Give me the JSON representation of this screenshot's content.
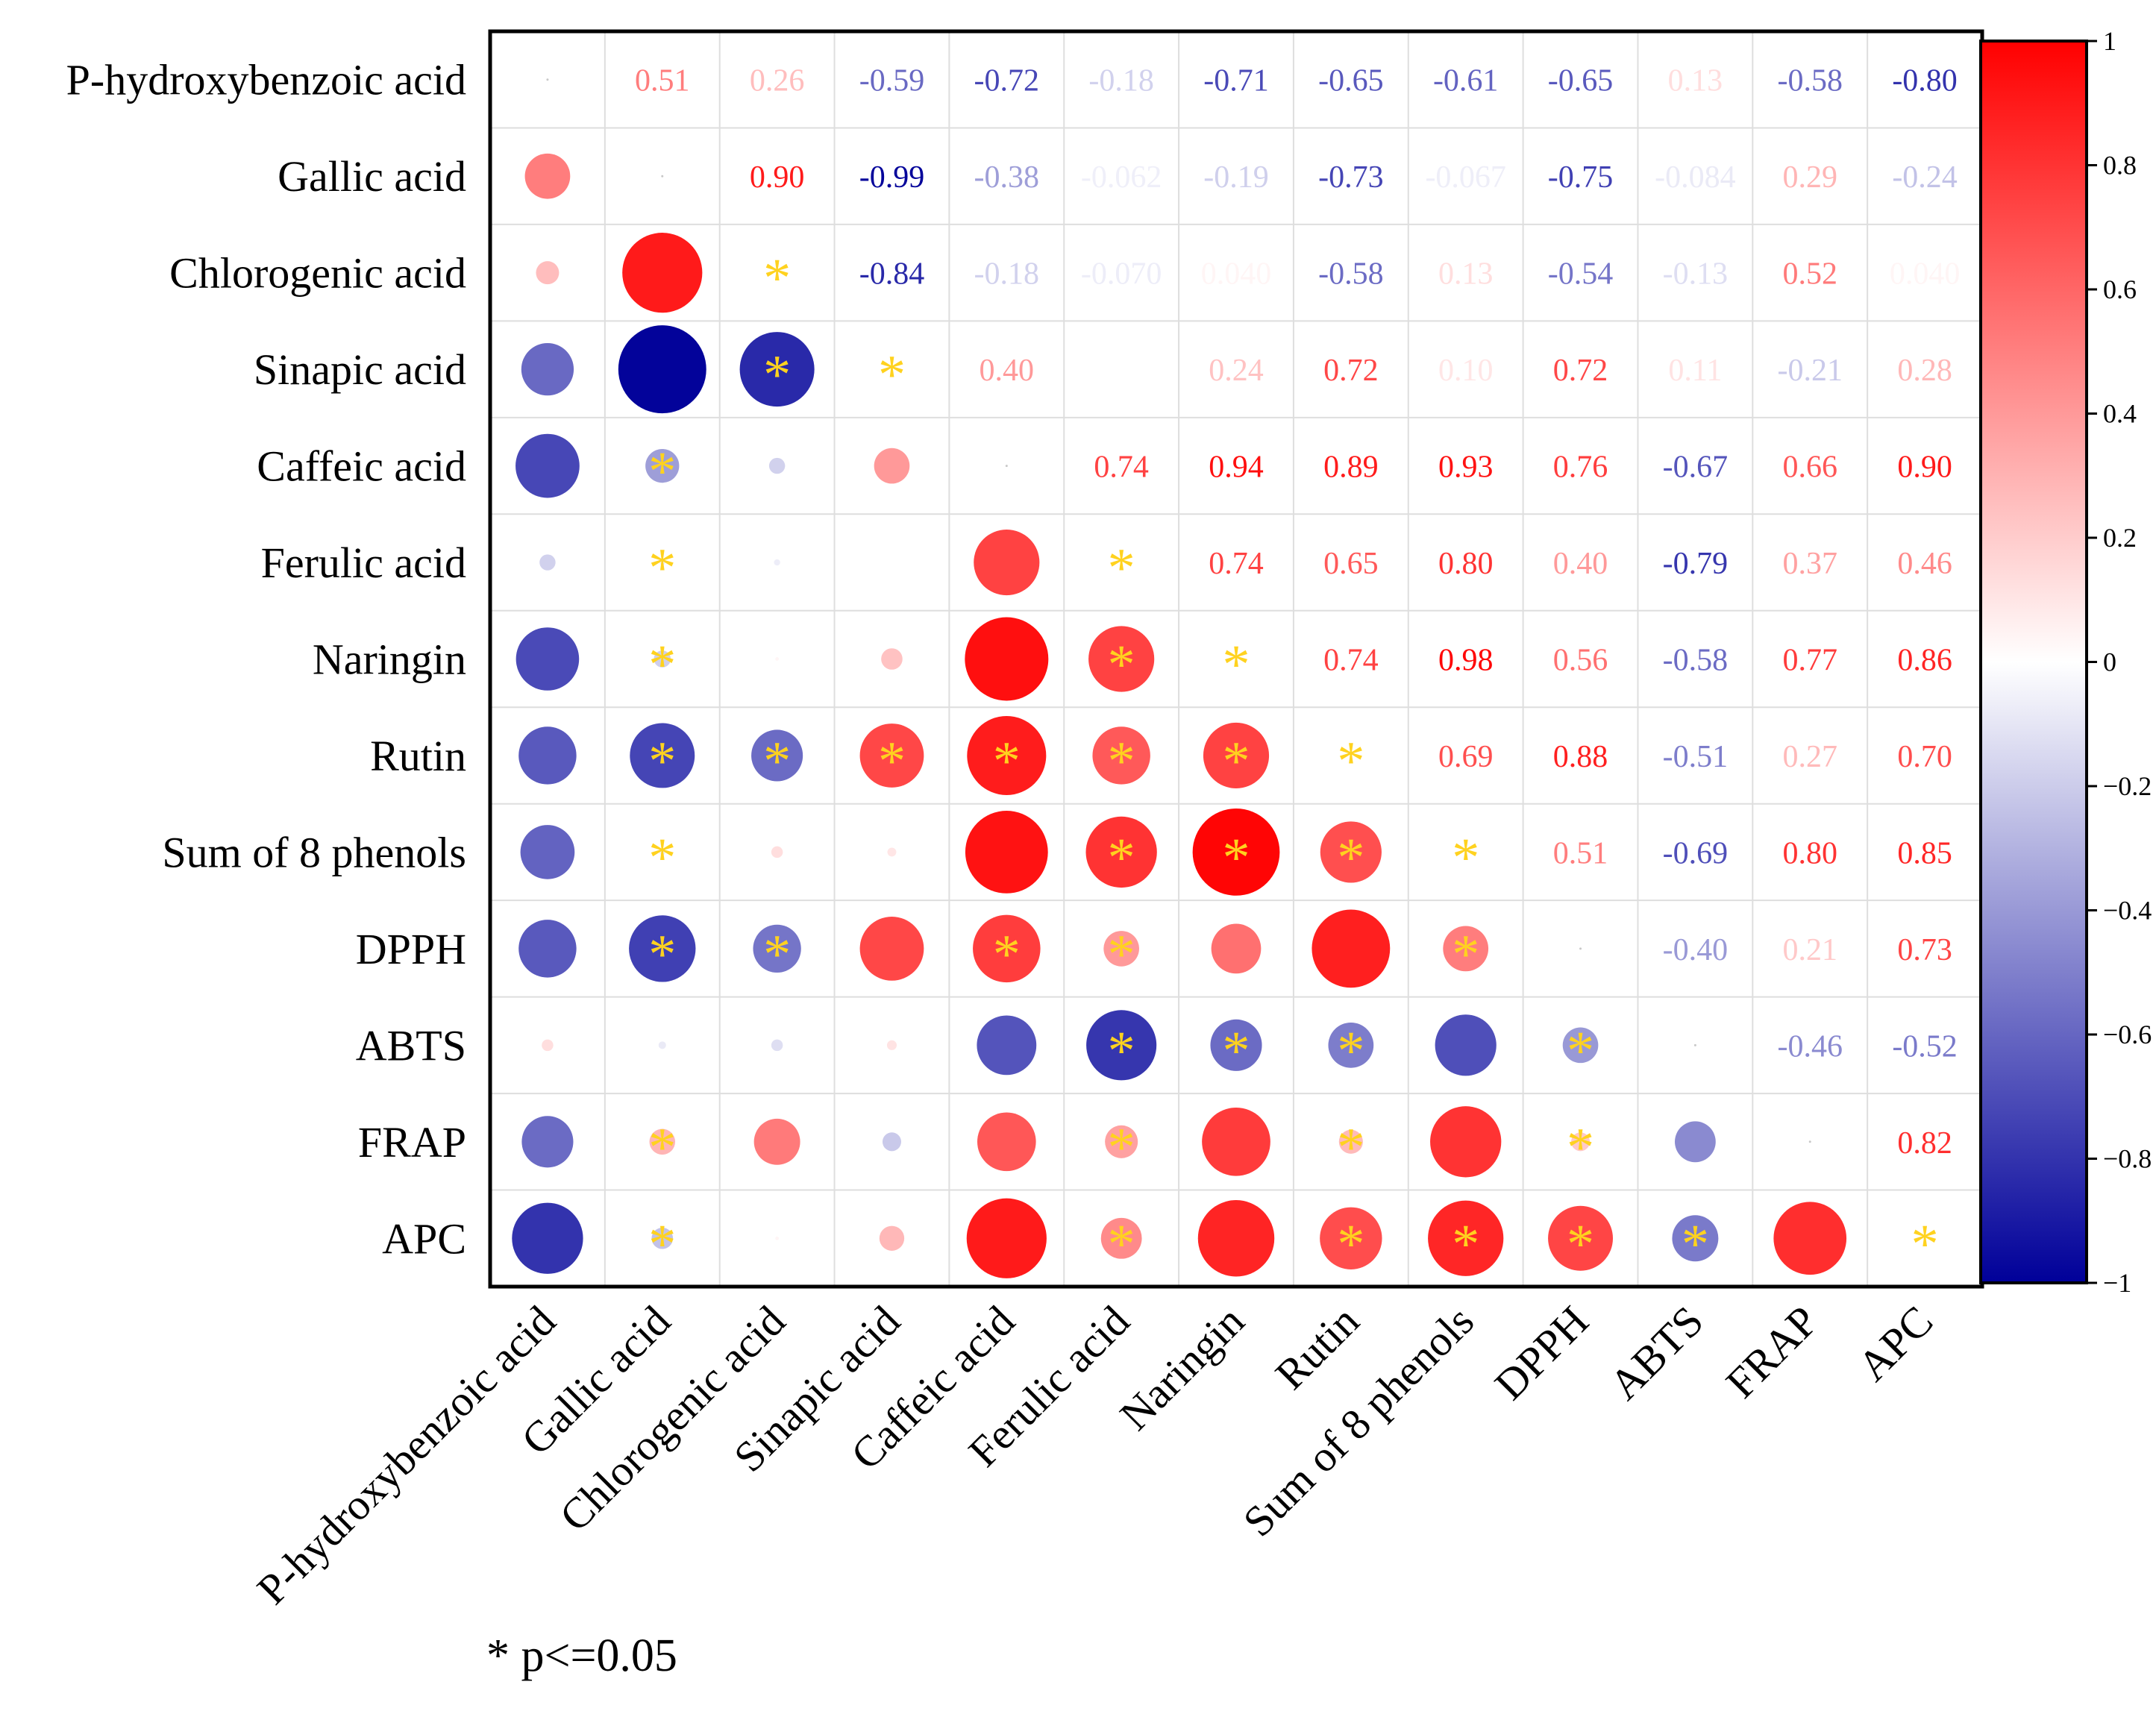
{
  "chart_data": {
    "type": "heatmap",
    "variables": [
      "P-hydroxybenzoic acid",
      "Gallic acid",
      "Chlorogenic acid",
      "Sinapic acid",
      "Caffeic acid",
      "Ferulic acid",
      "Naringin",
      "Rutin",
      "Sum of 8 phenols",
      "DPPH",
      "ABTS",
      "FRAP",
      "APC"
    ],
    "matrix": [
      [
        1.0,
        0.51,
        0.26,
        -0.59,
        -0.72,
        -0.18,
        -0.71,
        -0.65,
        -0.61,
        -0.65,
        0.13,
        -0.58,
        -0.8
      ],
      [
        0.51,
        1.0,
        0.9,
        -0.99,
        -0.38,
        -0.062,
        -0.19,
        -0.73,
        -0.067,
        -0.75,
        -0.084,
        0.29,
        -0.24
      ],
      [
        0.26,
        0.9,
        1.0,
        -0.84,
        -0.18,
        -0.07,
        0.04,
        -0.58,
        0.13,
        -0.54,
        -0.13,
        0.52,
        0.04
      ],
      [
        -0.59,
        -0.99,
        -0.84,
        1.0,
        0.4,
        0.0,
        0.24,
        0.72,
        0.1,
        0.72,
        0.11,
        -0.21,
        0.28
      ],
      [
        -0.72,
        -0.38,
        -0.18,
        0.4,
        1.0,
        0.74,
        0.94,
        0.89,
        0.93,
        0.76,
        -0.67,
        0.66,
        0.9
      ],
      [
        -0.18,
        -0.062,
        -0.07,
        0.0,
        0.74,
        1.0,
        0.74,
        0.65,
        0.8,
        0.4,
        -0.79,
        0.37,
        0.46
      ],
      [
        -0.71,
        -0.19,
        0.04,
        0.24,
        0.94,
        0.74,
        1.0,
        0.74,
        0.98,
        0.56,
        -0.58,
        0.77,
        0.86
      ],
      [
        -0.65,
        -0.73,
        -0.58,
        0.72,
        0.89,
        0.65,
        0.74,
        1.0,
        0.69,
        0.88,
        -0.51,
        0.27,
        0.7
      ],
      [
        -0.61,
        -0.067,
        0.13,
        0.1,
        0.93,
        0.8,
        0.98,
        0.69,
        1.0,
        0.51,
        -0.69,
        0.8,
        0.85
      ],
      [
        -0.65,
        -0.75,
        -0.54,
        0.72,
        0.76,
        0.4,
        0.56,
        0.88,
        0.51,
        1.0,
        -0.4,
        0.21,
        0.73
      ],
      [
        0.13,
        -0.084,
        -0.13,
        0.11,
        -0.67,
        -0.79,
        -0.58,
        -0.51,
        -0.69,
        -0.4,
        1.0,
        -0.46,
        -0.52
      ],
      [
        -0.58,
        0.29,
        0.52,
        -0.21,
        0.66,
        0.37,
        0.77,
        0.27,
        0.8,
        0.21,
        -0.46,
        1.0,
        0.82
      ],
      [
        -0.8,
        -0.24,
        0.04,
        0.28,
        0.9,
        0.46,
        0.86,
        0.7,
        0.85,
        0.73,
        -0.52,
        0.82,
        1.0
      ]
    ],
    "upper_labels": [
      [
        "",
        "0.51",
        "0.26",
        "-0.59",
        "-0.72",
        "-0.18",
        "-0.71",
        "-0.65",
        "-0.61",
        "-0.65",
        "0.13",
        "-0.58",
        "-0.80"
      ],
      [
        "",
        "",
        "0.90",
        "-0.99",
        "-0.38",
        "-0.062",
        "-0.19",
        "-0.73",
        "-0.067",
        "-0.75",
        "-0.084",
        "0.29",
        "-0.24"
      ],
      [
        "",
        "",
        "",
        "-0.84",
        "-0.18",
        "-0.070",
        "0.040",
        "-0.58",
        "0.13",
        "-0.54",
        "-0.13",
        "0.52",
        "0.040"
      ],
      [
        "",
        "",
        "",
        "",
        "0.40",
        "",
        "0.24",
        "0.72",
        "0.10",
        "0.72",
        "0.11",
        "-0.21",
        "0.28"
      ],
      [
        "",
        "",
        "",
        "",
        "",
        "0.74",
        "0.94",
        "0.89",
        "0.93",
        "0.76",
        "-0.67",
        "0.66",
        "0.90"
      ],
      [
        "",
        "",
        "",
        "",
        "",
        "",
        "0.74",
        "0.65",
        "0.80",
        "0.40",
        "-0.79",
        "0.37",
        "0.46"
      ],
      [
        "",
        "",
        "",
        "",
        "",
        "",
        "",
        "0.74",
        "0.98",
        "0.56",
        "-0.58",
        "0.77",
        "0.86"
      ],
      [
        "",
        "",
        "",
        "",
        "",
        "",
        "",
        "",
        "0.69",
        "0.88",
        "-0.51",
        "0.27",
        "0.70"
      ],
      [
        "",
        "",
        "",
        "",
        "",
        "",
        "",
        "",
        "",
        "0.51",
        "-0.69",
        "0.80",
        "0.85"
      ],
      [
        "",
        "",
        "",
        "",
        "",
        "",
        "",
        "",
        "",
        "",
        "-0.40",
        "0.21",
        "0.73"
      ],
      [
        "",
        "",
        "",
        "",
        "",
        "",
        "",
        "",
        "",
        "",
        "",
        "-0.46",
        "-0.52"
      ],
      [
        "",
        "",
        "",
        "",
        "",
        "",
        "",
        "",
        "",
        "",
        "",
        "",
        "0.82"
      ],
      [
        "",
        "",
        "",
        "",
        "",
        "",
        "",
        "",
        "",
        "",
        "",
        "",
        ""
      ]
    ],
    "significant": [
      [
        4,
        1
      ],
      [
        5,
        1
      ],
      [
        6,
        1
      ],
      [
        7,
        1
      ],
      [
        8,
        1
      ],
      [
        9,
        1
      ],
      [
        11,
        1
      ],
      [
        12,
        1
      ],
      [
        2,
        2
      ],
      [
        3,
        2
      ],
      [
        7,
        2
      ],
      [
        9,
        2
      ],
      [
        3,
        3
      ],
      [
        7,
        3
      ],
      [
        7,
        4
      ],
      [
        9,
        4
      ],
      [
        5,
        5
      ],
      [
        6,
        5
      ],
      [
        7,
        5
      ],
      [
        8,
        5
      ],
      [
        9,
        5
      ],
      [
        10,
        5
      ],
      [
        11,
        5
      ],
      [
        12,
        5
      ],
      [
        6,
        6
      ],
      [
        7,
        6
      ],
      [
        8,
        6
      ],
      [
        10,
        6
      ],
      [
        7,
        7
      ],
      [
        8,
        7
      ],
      [
        10,
        7
      ],
      [
        11,
        7
      ],
      [
        12,
        7
      ],
      [
        8,
        8
      ],
      [
        9,
        8
      ],
      [
        12,
        8
      ],
      [
        10,
        9
      ],
      [
        11,
        9
      ],
      [
        12,
        9
      ],
      [
        12,
        10
      ],
      [
        12,
        12
      ]
    ],
    "colorbar": {
      "range": [
        -1,
        1
      ],
      "ticks": [
        "1",
        "0.8",
        "0.6",
        "0.4",
        "0.2",
        "0",
        "−0.2",
        "−0.4",
        "−0.6",
        "−0.8",
        "−1"
      ],
      "colors": {
        "negative": "#000099",
        "zero": "#ffffff",
        "positive": "#ff0000"
      }
    },
    "significance_marker": "*",
    "marker_color": "#ffd21f",
    "grid_color": "#dedede"
  },
  "footnote": "* p<=0.05"
}
